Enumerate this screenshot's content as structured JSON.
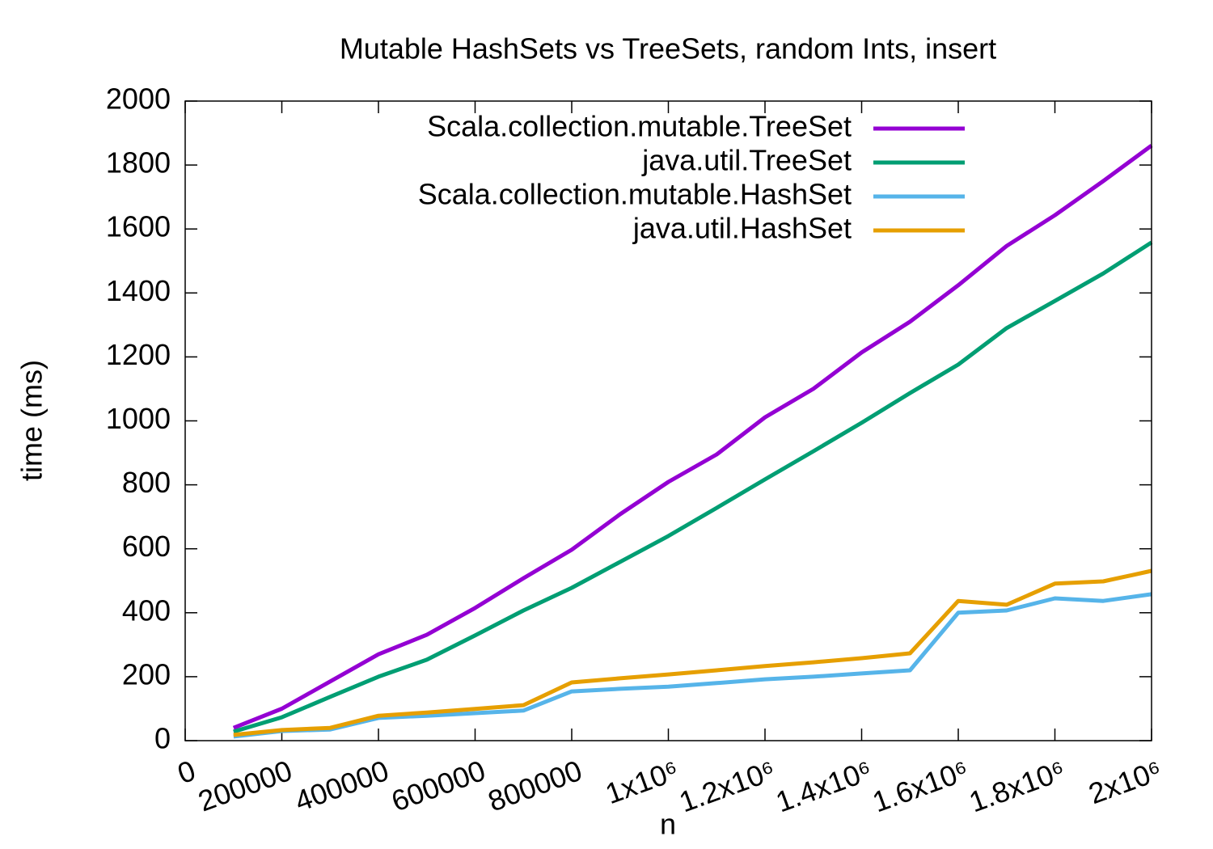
{
  "chart_data": {
    "type": "line",
    "title": "Mutable HashSets vs TreeSets, random Ints, insert",
    "x_label": "n",
    "y_label": "time (ms)",
    "x": [
      100000,
      200000,
      300000,
      400000,
      500000,
      600000,
      700000,
      800000,
      900000,
      1000000,
      1100000,
      1200000,
      1300000,
      1400000,
      1500000,
      1600000,
      1700000,
      1800000,
      1900000,
      2000000
    ],
    "series": [
      {
        "name": "Scala.collection.mutable.TreeSet",
        "color": "#9400d3",
        "values": [
          40,
          100,
          185,
          270,
          331,
          415,
          508,
          597,
          708,
          809,
          895,
          1011,
          1100,
          1214,
          1310,
          1424,
          1547,
          1643,
          1750,
          1861
        ]
      },
      {
        "name": "java.util.TreeSet",
        "color": "#009e73",
        "values": [
          28,
          73,
          137,
          200,
          253,
          329,
          407,
          478,
          559,
          640,
          728,
          817,
          905,
          994,
          1087,
          1176,
          1290,
          1375,
          1461,
          1558
        ]
      },
      {
        "name": "Scala.collection.mutable.HashSet",
        "color": "#56b4e9",
        "values": [
          13,
          30,
          35,
          71,
          78,
          86,
          94,
          154,
          162,
          169,
          180,
          192,
          200,
          210,
          220,
          400,
          407,
          445,
          437,
          458
        ]
      },
      {
        "name": "java.util.HashSet",
        "color": "#e69f00",
        "values": [
          18,
          33,
          40,
          78,
          88,
          99,
          111,
          182,
          195,
          207,
          220,
          233,
          245,
          258,
          273,
          437,
          425,
          491,
          498,
          531
        ]
      }
    ],
    "xlim": [
      0,
      2000000
    ],
    "xticks": [
      0,
      200000,
      400000,
      600000,
      800000,
      {
        "value": 1000000,
        "label": "1x10⁶"
      },
      {
        "value": 1200000,
        "label": "1.2x10⁶"
      },
      {
        "value": 1400000,
        "label": "1.4x10⁶"
      },
      {
        "value": 1600000,
        "label": "1.6x10⁶"
      },
      {
        "value": 1800000,
        "label": "1.8x10⁶"
      },
      {
        "value": 2000000,
        "label": "2x10⁶"
      }
    ],
    "ylim": [
      0,
      2000
    ],
    "yticks": [
      0,
      200,
      400,
      600,
      800,
      1000,
      1200,
      1400,
      1600,
      1800,
      2000
    ],
    "grid": false,
    "legend": "top-right"
  }
}
